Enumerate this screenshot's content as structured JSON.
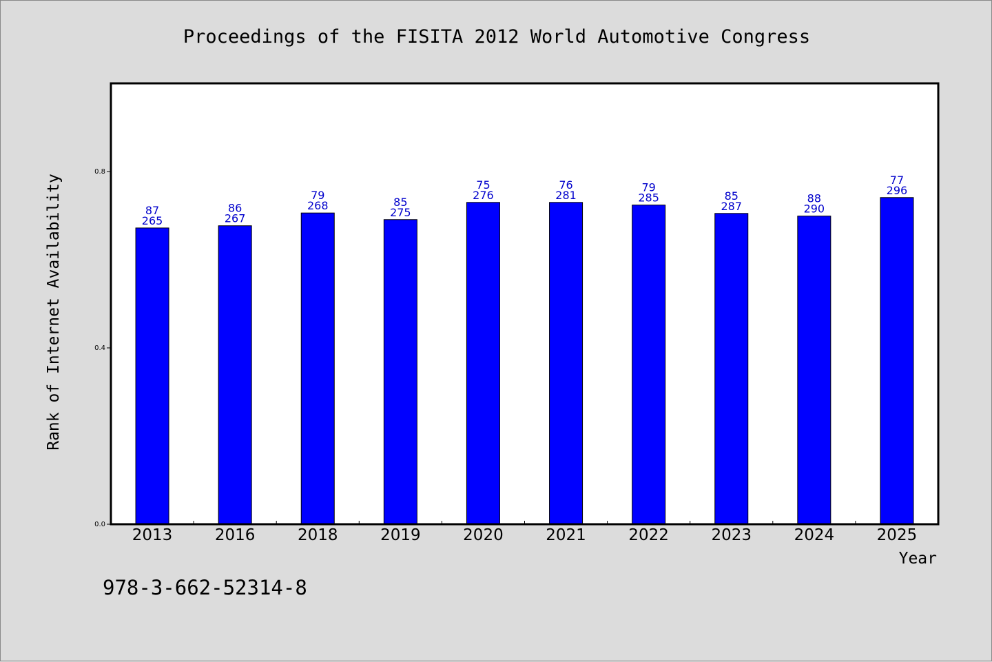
{
  "chart_data": {
    "type": "bar",
    "title": "Proceedings of the FISITA 2012 World Automotive Congress",
    "xlabel": "Year",
    "ylabel": "Rank of Internet Availability",
    "categories": [
      "2013",
      "2016",
      "2018",
      "2019",
      "2020",
      "2021",
      "2022",
      "2023",
      "2024",
      "2025"
    ],
    "values": [
      0.672,
      0.677,
      0.706,
      0.691,
      0.73,
      0.73,
      0.724,
      0.705,
      0.699,
      0.741
    ],
    "label_top": [
      "87",
      "86",
      "79",
      "85",
      "75",
      "76",
      "79",
      "85",
      "88",
      "77"
    ],
    "label_bottom": [
      "265",
      "267",
      "268",
      "275",
      "276",
      "281",
      "285",
      "287",
      "290",
      "296"
    ],
    "ylim": [
      0,
      1.0
    ],
    "yticks": [
      0.0,
      0.4,
      0.8
    ],
    "ytick_labels": [
      "0.0",
      "0.4",
      "0.8"
    ],
    "grid": false,
    "bar_color": "#0000ff",
    "label_color": "#0000cc"
  },
  "footer": {
    "isbn": "978-3-662-52314-8"
  }
}
